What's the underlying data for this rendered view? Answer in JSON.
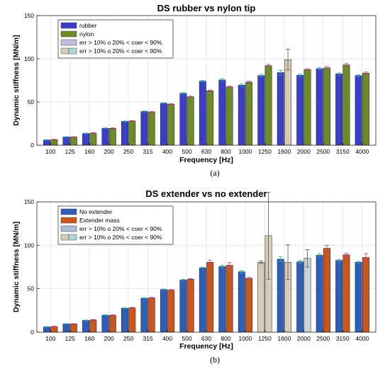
{
  "chart_data": [
    {
      "type": "bar",
      "title": "DS rubber vs nylon tip",
      "xlabel": "Frequency [Hz]",
      "ylabel": "Dynamic stiffness [MN/m]",
      "ylim": [
        0,
        150
      ],
      "yticks": [
        0,
        50,
        100,
        150
      ],
      "grid": true,
      "legend_position": "top-left",
      "caption": "(a)",
      "categories": [
        "100",
        "125",
        "160",
        "200",
        "250",
        "315",
        "400",
        "500",
        "630",
        "800",
        "1000",
        "1250",
        "1600",
        "2000",
        "2500",
        "3150",
        "4000"
      ],
      "series": [
        {
          "name": "rubber",
          "color": "#3b3fc8",
          "values": [
            6,
            9.5,
            13.5,
            19.5,
            27.5,
            39,
            48.5,
            60,
            74,
            75.5,
            69.5,
            80.5,
            84,
            81,
            88.5,
            82.5,
            80.5
          ],
          "errors": [
            0.4,
            0.4,
            0.5,
            0.5,
            0.5,
            0.6,
            0.6,
            0.8,
            0.8,
            1.5,
            1.5,
            1.5,
            2.5,
            1.5,
            1.5,
            1.2,
            1.2
          ],
          "flagged": [
            false,
            false,
            false,
            false,
            false,
            false,
            false,
            false,
            false,
            false,
            false,
            false,
            false,
            false,
            false,
            false,
            false
          ]
        },
        {
          "name": "nylon",
          "color": "#6e8b2b",
          "values": [
            6.5,
            9.5,
            14,
            19.5,
            28,
            38.5,
            47.5,
            56,
            63,
            67.5,
            73,
            92,
            99,
            87.5,
            89.5,
            93,
            83.5
          ],
          "errors": [
            0.4,
            0.4,
            0.5,
            0.5,
            0.5,
            0.6,
            0.6,
            0.8,
            0.8,
            1,
            1,
            1.5,
            12,
            1.2,
            1.5,
            1.5,
            1.2
          ],
          "flagged": [
            false,
            false,
            false,
            false,
            false,
            false,
            false,
            false,
            false,
            false,
            false,
            false,
            true,
            false,
            false,
            false,
            false
          ]
        }
      ],
      "legend": [
        {
          "label": "rubber",
          "color": "#3b3fc8",
          "color2": ""
        },
        {
          "label": "nylon",
          "color": "#6e8b2b",
          "color2": ""
        },
        {
          "label": "err > 10% o 20% < coer < 90%",
          "color": "#c2bfdd",
          "color2": ""
        },
        {
          "label": "err > 10% o 20% < coer < 90%",
          "color": "#d7ccb8",
          "color2": "#b3d6d6"
        }
      ]
    },
    {
      "type": "bar",
      "title": "DS extender vs no extender",
      "xlabel": "Frequency [Hz]",
      "ylabel": "Dynamic stiffness [MN/m]",
      "ylim": [
        0,
        150
      ],
      "yticks": [
        0,
        50,
        100,
        150
      ],
      "grid": true,
      "legend_position": "top-left",
      "caption": "(b)",
      "categories": [
        "100",
        "125",
        "160",
        "200",
        "250",
        "315",
        "400",
        "500",
        "630",
        "800",
        "1000",
        "1250",
        "1600",
        "2000",
        "2500",
        "3150",
        "4000"
      ],
      "series": [
        {
          "name": "No extender",
          "color": "#2e5fb8",
          "values": [
            6,
            9.5,
            13.5,
            19.5,
            27.5,
            39,
            49,
            60,
            74,
            75.5,
            69.5,
            80.5,
            84,
            81,
            88.5,
            82.5,
            80.5
          ],
          "errors": [
            0.4,
            0.4,
            0.5,
            0.5,
            0.5,
            0.6,
            0.6,
            0.8,
            0.8,
            1.5,
            1.5,
            1.5,
            3,
            1.5,
            1.5,
            1.2,
            1.2
          ],
          "flagged": [
            false,
            false,
            false,
            false,
            false,
            false,
            false,
            false,
            false,
            false,
            false,
            true,
            false,
            false,
            false,
            false,
            false
          ]
        },
        {
          "name": "Extender mass",
          "color": "#c9561e",
          "values": [
            6.5,
            9.5,
            14,
            19.5,
            28,
            39.5,
            48.5,
            61,
            80.5,
            77,
            62,
            111,
            80.5,
            85,
            96.5,
            89,
            86
          ],
          "errors": [
            0.4,
            0.4,
            0.5,
            0.5,
            0.5,
            0.6,
            0.6,
            0.8,
            2.5,
            3,
            1,
            50,
            20,
            10,
            3.5,
            2,
            4.5
          ],
          "flagged": [
            false,
            false,
            false,
            false,
            false,
            false,
            false,
            false,
            false,
            false,
            false,
            true,
            true,
            true,
            false,
            false,
            false
          ]
        }
      ],
      "legend": [
        {
          "label": "No extender",
          "color": "#2e5fb8",
          "color2": ""
        },
        {
          "label": "Extender mass",
          "color": "#c9561e",
          "color2": ""
        },
        {
          "label": "err > 10% o 20% < coer < 90%",
          "color": "#a9bbd6",
          "color2": ""
        },
        {
          "label": "err > 10% o 20% < coer < 90%",
          "color": "#d7ccb8",
          "color2": "#b3d6d6"
        }
      ]
    }
  ]
}
